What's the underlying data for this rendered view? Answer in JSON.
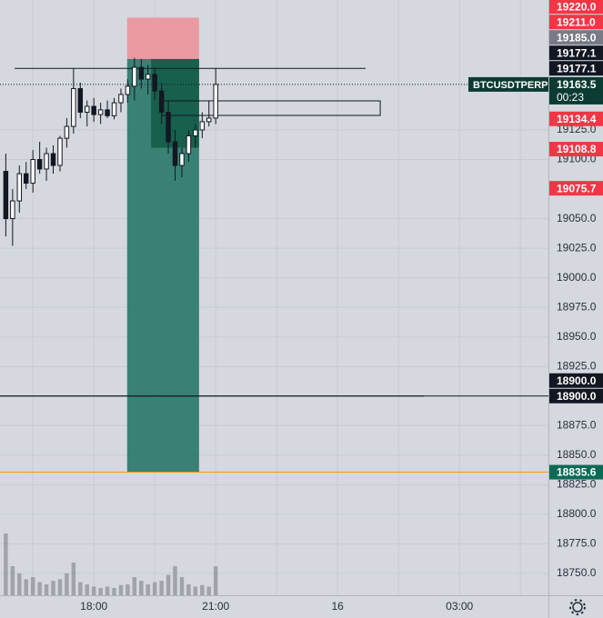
{
  "chart_data": {
    "type": "candlestick",
    "symbol": "BTCUSDTPERP",
    "countdown": "00:23",
    "last": {
      "value": 19163.5,
      "label": "19163.5",
      "color": "#0b3b32"
    },
    "x": [
      15.833,
      16.0,
      16.167,
      16.333,
      16.5,
      16.667,
      16.833,
      17.0,
      17.167,
      17.333,
      17.5,
      17.667,
      17.833,
      18.0,
      18.167,
      18.333,
      18.5,
      18.667,
      18.833,
      19.0,
      19.167,
      19.333,
      19.5,
      19.667,
      19.833,
      20.0,
      20.167,
      20.333,
      20.5,
      20.667,
      20.833,
      21.0
    ],
    "open": [
      19090,
      19050,
      19065,
      19088,
      19080,
      19100,
      19092,
      19105,
      19095,
      19118,
      19128,
      19160,
      19140,
      19145,
      19138,
      19142,
      19137,
      19148,
      19155,
      19162,
      19178,
      19168,
      19172,
      19158,
      19140,
      19115,
      19095,
      19105,
      19120,
      19125,
      19132,
      19135
    ],
    "high": [
      19105,
      19075,
      19095,
      19098,
      19108,
      19115,
      19110,
      19112,
      19120,
      19135,
      19177,
      19165,
      19150,
      19152,
      19148,
      19150,
      19152,
      19160,
      19168,
      19186,
      19185,
      19180,
      19178,
      19165,
      19150,
      19125,
      19110,
      19125,
      19130,
      19140,
      19150,
      19177
    ],
    "low": [
      19035,
      19027,
      19055,
      19075,
      19072,
      19088,
      19082,
      19088,
      19090,
      19110,
      19122,
      19135,
      19128,
      19132,
      19130,
      19135,
      19134,
      19140,
      19148,
      19150,
      19160,
      19155,
      19150,
      19130,
      19105,
      19082,
      19085,
      19098,
      19110,
      19118,
      19128,
      19130
    ],
    "close": [
      19050,
      19065,
      19088,
      19080,
      19100,
      19092,
      19105,
      19095,
      19118,
      19128,
      19160,
      19140,
      19145,
      19138,
      19142,
      19137,
      19148,
      19155,
      19162,
      19178,
      19168,
      19172,
      19158,
      19140,
      19115,
      19095,
      19105,
      19120,
      19125,
      19132,
      19135,
      19163.5
    ],
    "volume": [
      85,
      40,
      30,
      22,
      25,
      18,
      15,
      20,
      22,
      30,
      45,
      18,
      15,
      12,
      10,
      12,
      10,
      14,
      15,
      25,
      20,
      15,
      18,
      20,
      28,
      40,
      25,
      15,
      12,
      14,
      12,
      40
    ],
    "up_color": "#ffffff",
    "down_color": "#131722",
    "volume_color": "#8a8d96",
    "xlim": [
      15.69,
      29.19
    ],
    "xticks": [
      {
        "value": 18,
        "label": "18:00"
      },
      {
        "value": 21,
        "label": "21:00"
      },
      {
        "value": 24,
        "label": "16"
      },
      {
        "value": 27,
        "label": "03:00"
      }
    ],
    "xgrid_minor": [
      16.5,
      19.5,
      22.5,
      25.5,
      28.5
    ],
    "ylim": [
      18731.5,
      19234.9
    ],
    "yticks": [
      {
        "value": 19125,
        "label": "19125.0"
      },
      {
        "value": 19100,
        "label": "19100.0"
      },
      {
        "value": 19050,
        "label": "19050.0"
      },
      {
        "value": 19025,
        "label": "19025.0"
      },
      {
        "value": 19000,
        "label": "19000.0"
      },
      {
        "value": 18975,
        "label": "18975.0"
      },
      {
        "value": 18950,
        "label": "18950.0"
      },
      {
        "value": 18925,
        "label": "18925.0"
      },
      {
        "value": 18875,
        "label": "18875.0"
      },
      {
        "value": 18850,
        "label": "18850.0"
      },
      {
        "value": 18825,
        "label": "18825.0"
      },
      {
        "value": 18800,
        "label": "18800.0"
      },
      {
        "value": 18775,
        "label": "18775.0"
      },
      {
        "value": 18750,
        "label": "18750.0"
      }
    ],
    "grid": true,
    "position": {
      "start": 18.82,
      "end": 20.59,
      "stop": 19220,
      "entry": 19185,
      "target": 18835.6,
      "active_start": 19.41,
      "active_low": 19110,
      "stop_color": "#eb9aa2",
      "target_color": "#2b7a6a",
      "active_color": "#125a47"
    },
    "lines": [
      {
        "price": 19177.1,
        "start": 16.05,
        "end": 24.69,
        "color": "#131722"
      },
      {
        "price": 18900,
        "start": 15.69,
        "end": 26.12,
        "color": "#131722"
      },
      {
        "price": 18900,
        "start": 15.69,
        "end": 29.19,
        "color": "#131722"
      },
      {
        "price": 18835.6,
        "start": 15.69,
        "end": 29.19,
        "color": "#f7931a"
      }
    ],
    "box": {
      "top": 19149.6,
      "bottom": 19137.3,
      "start": 19.67,
      "end": 25.05
    },
    "price_tags": [
      {
        "value": 19220,
        "label": "19220.0",
        "color": "#f23645"
      },
      {
        "value": 19211,
        "label": "19211.0",
        "color": "#f23645"
      },
      {
        "value": 19185,
        "label": "19185.0",
        "color": "#787b86"
      },
      {
        "value": 19177.1,
        "label": "19177.1",
        "color": "#131722"
      },
      {
        "value": 19177.1,
        "label": "19177.1",
        "color": "#131722"
      },
      {
        "value": 19134.4,
        "label": "19134.4",
        "color": "#f23645"
      },
      {
        "value": 19108.8,
        "label": "19108.8",
        "color": "#f23645"
      },
      {
        "value": 19075.7,
        "label": "19075.7",
        "color": "#f23645"
      },
      {
        "value": 18900,
        "label": "18900.0",
        "color": "#131722"
      },
      {
        "value": 18900,
        "label": "18900.0",
        "color": "#131722"
      },
      {
        "value": 18835.6,
        "label": "18835.6",
        "color": "#0d6b55"
      }
    ]
  }
}
